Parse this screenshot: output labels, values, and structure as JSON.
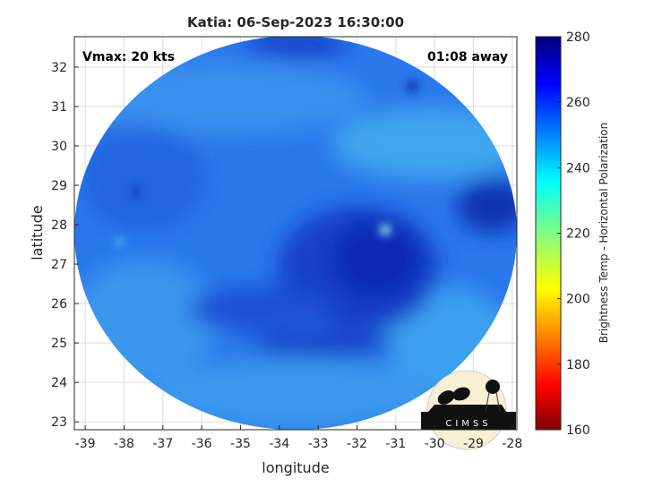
{
  "chart_data": {
    "type": "heatmap",
    "title": "Katia: 06-Sep-2023 16:30:00",
    "xlabel": "longitude",
    "ylabel": "latitude",
    "xlim": [
      -39.28,
      -27.88
    ],
    "ylim": [
      22.8,
      32.77
    ],
    "xticks": [
      -39,
      -38,
      -37,
      -36,
      -35,
      -34,
      -33,
      -32,
      -31,
      -30,
      -29,
      -28
    ],
    "yticks": [
      23,
      24,
      25,
      26,
      27,
      28,
      29,
      30,
      31,
      32
    ],
    "grid": true,
    "annotations": {
      "vmax": "Vmax: 20 kts",
      "time_offset": "01:08 away"
    },
    "colorbar": {
      "label": "Brightness Temp - Horizontal Polarization",
      "range": [
        160,
        280
      ],
      "ticks": [
        160,
        180,
        200,
        220,
        240,
        260,
        280
      ],
      "colormap": "jet"
    },
    "storm_center": {
      "lon": -32.2,
      "lat": 26.8
    }
  },
  "logo": {
    "text": "CIMSS"
  },
  "colors": {
    "background_field": "#2a78ec",
    "cold_core": "#0a2fb8",
    "warm_band": "#38a8f0"
  }
}
